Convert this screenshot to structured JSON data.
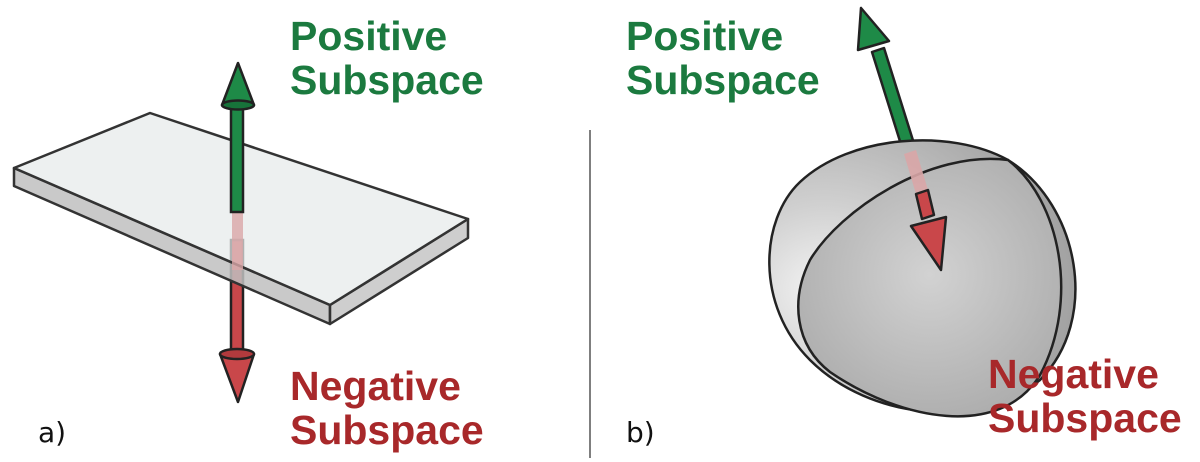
{
  "panels": [
    {
      "label": "a)",
      "positive_label": [
        "Positive",
        "Subspace"
      ],
      "negative_label": [
        "Negative",
        "Subspace"
      ]
    },
    {
      "label": "b)",
      "positive_label": [
        "Positive",
        "Subspace"
      ],
      "negative_label": [
        "Negative",
        "Subspace"
      ]
    }
  ],
  "colors": {
    "positive": "#1b7a3f",
    "negative": "#a8282a",
    "arrow_green": "#1e8a47",
    "arrow_red": "#c9474a",
    "outline": "#222222"
  }
}
